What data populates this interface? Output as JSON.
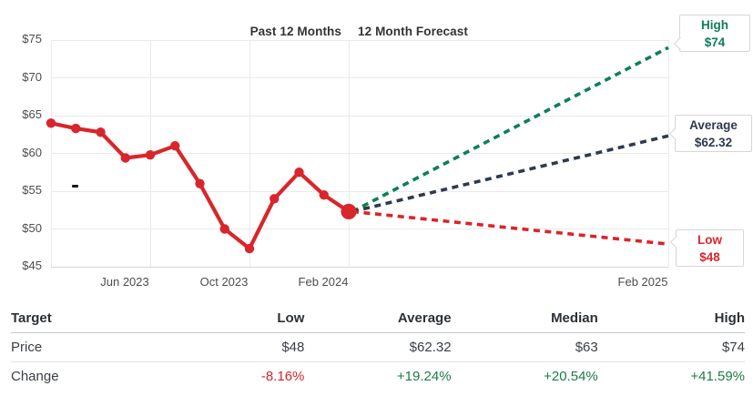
{
  "colors": {
    "history_red": "#d8262c",
    "forecast_green": "#0e7f56",
    "forecast_navy": "#2e3a4d",
    "forecast_red": "#dc2328",
    "positive_green": "#1e7b48",
    "negative_red": "#d5252c"
  },
  "chart": {
    "past_period_label": "Past 12 Months",
    "forecast_period_label": "12 Month Forecast",
    "y_tick_labels": [
      "$75",
      "$70",
      "$65",
      "$60",
      "$55",
      "$50",
      "$45"
    ],
    "x_tick_labels": [
      "Jun 2023",
      "Oct 2023",
      "Feb 2024",
      "Feb 2025"
    ],
    "callouts": {
      "high": {
        "title": "High",
        "value": "$74"
      },
      "average": {
        "title": "Average",
        "value": "$62.32"
      },
      "low": {
        "title": "Low",
        "value": "$48"
      }
    }
  },
  "chart_data": {
    "type": "line",
    "title": "Past 12 Months and 12 Month Forecast",
    "x": [
      "Feb 2023",
      "Mar 2023",
      "Apr 2023",
      "May 2023",
      "Jun 2023",
      "Jul 2023",
      "Aug 2023",
      "Sep 2023",
      "Oct 2023",
      "Nov 2023",
      "Dec 2023",
      "Jan 2024",
      "Feb 2024"
    ],
    "series": [
      {
        "name": "Price history",
        "values": [
          64,
          63.3,
          62.8,
          59.4,
          59.8,
          61,
          56,
          50,
          47.4,
          54,
          57.5,
          54.5,
          52.3
        ]
      }
    ],
    "forecast": {
      "start_value": 52.3,
      "end_label": "Feb 2025",
      "targets": {
        "high": 74,
        "average": 62.32,
        "low": 48
      }
    },
    "ylim": [
      45,
      75
    ],
    "y_tick_step": 5,
    "grid": true,
    "x_gridline_indices": [
      0,
      4,
      8,
      12
    ],
    "legend": "none"
  },
  "table": {
    "headers": [
      "Target",
      "Low",
      "Average",
      "Median",
      "High"
    ],
    "rows": [
      {
        "label": "Price",
        "cells": [
          "$48",
          "$62.32",
          "$63",
          "$74"
        ]
      },
      {
        "label": "Change",
        "cells": [
          "-8.16%",
          "+19.24%",
          "+20.54%",
          "+41.59%"
        ]
      }
    ]
  }
}
